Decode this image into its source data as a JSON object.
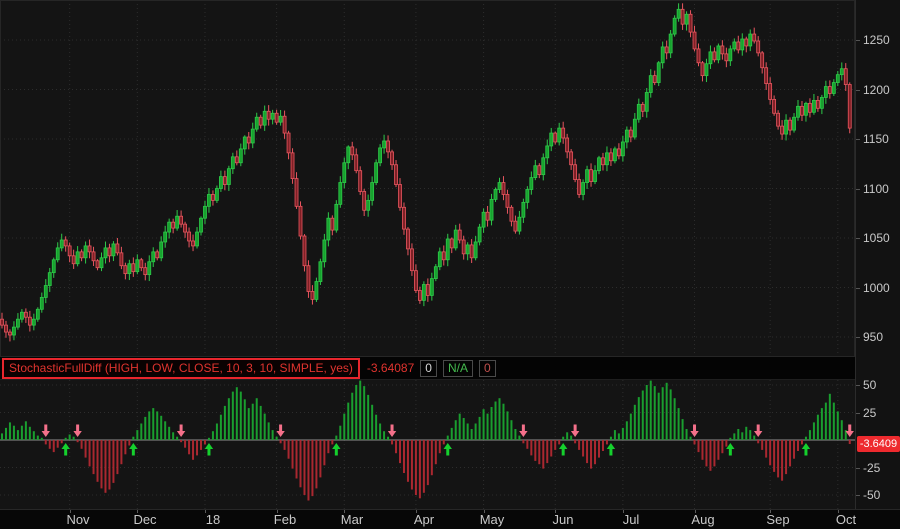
{
  "indicator_header": {
    "label": "StochasticFullDiff (HIGH, LOW, CLOSE, 10, 3, 10, SIMPLE, yes)",
    "value": "-3.64087",
    "fields": [
      {
        "text": "0",
        "color": "#d6d6d6"
      },
      {
        "text": "N/A",
        "color": "#44b94e"
      },
      {
        "text": "0",
        "color": "#c0504d"
      }
    ]
  },
  "price_axis": {
    "ticks": [
      1250,
      1200,
      1150,
      1100,
      1050,
      1000,
      950
    ]
  },
  "study_axis": {
    "ticks": [
      50,
      25,
      -25,
      -50
    ],
    "current_badge": "-3.6409"
  },
  "time_axis": {
    "labels": [
      "Nov",
      "Dec",
      "18",
      "Feb",
      "Mar",
      "Apr",
      "May",
      "Jun",
      "Jul",
      "Aug",
      "Sep",
      "Oct"
    ],
    "month_start_bars": [
      17,
      34,
      51,
      69,
      86,
      104,
      121,
      139,
      156,
      174,
      193,
      210
    ]
  },
  "chart_data": {
    "type": "candlestick_with_histogram_study",
    "title": "",
    "study_name": "StochasticFullDiff",
    "price_ylim": [
      932,
      1290
    ],
    "study_ylim": [
      -58,
      55
    ],
    "grid": true,
    "closes": [
      962,
      955,
      952,
      960,
      968,
      975,
      970,
      962,
      968,
      978,
      990,
      1002,
      1015,
      1028,
      1040,
      1048,
      1042,
      1032,
      1024,
      1036,
      1030,
      1042,
      1036,
      1027,
      1020,
      1030,
      1040,
      1032,
      1044,
      1035,
      1022,
      1014,
      1024,
      1016,
      1028,
      1020,
      1013,
      1026,
      1036,
      1030,
      1046,
      1056,
      1066,
      1060,
      1072,
      1064,
      1056,
      1047,
      1042,
      1056,
      1070,
      1082,
      1094,
      1088,
      1100,
      1112,
      1104,
      1120,
      1132,
      1126,
      1140,
      1152,
      1146,
      1160,
      1172,
      1164,
      1178,
      1170,
      1176,
      1167,
      1173,
      1156,
      1136,
      1110,
      1082,
      1052,
      1022,
      996,
      988,
      1006,
      1026,
      1048,
      1070,
      1058,
      1084,
      1106,
      1126,
      1142,
      1134,
      1118,
      1097,
      1078,
      1088,
      1106,
      1126,
      1141,
      1148,
      1137,
      1124,
      1104,
      1081,
      1059,
      1039,
      1017,
      997,
      987,
      1003,
      992,
      1009,
      1021,
      1036,
      1028,
      1049,
      1040,
      1058,
      1048,
      1034,
      1043,
      1030,
      1046,
      1061,
      1076,
      1068,
      1089,
      1099,
      1106,
      1094,
      1081,
      1067,
      1057,
      1071,
      1086,
      1099,
      1111,
      1123,
      1114,
      1131,
      1143,
      1156,
      1147,
      1161,
      1151,
      1137,
      1124,
      1109,
      1094,
      1106,
      1119,
      1107,
      1118,
      1131,
      1124,
      1136,
      1128,
      1140,
      1133,
      1147,
      1159,
      1152,
      1170,
      1185,
      1178,
      1197,
      1214,
      1207,
      1227,
      1243,
      1237,
      1256,
      1272,
      1281,
      1266,
      1276,
      1258,
      1241,
      1227,
      1214,
      1226,
      1238,
      1230,
      1244,
      1236,
      1229,
      1241,
      1248,
      1240,
      1251,
      1244,
      1256,
      1249,
      1237,
      1222,
      1206,
      1190,
      1176,
      1163,
      1155,
      1169,
      1159,
      1172,
      1183,
      1174,
      1186,
      1177,
      1189,
      1181,
      1192,
      1203,
      1196,
      1207,
      1215,
      1221,
      1205,
      1161
    ],
    "histogram": [
      6,
      11,
      16,
      13,
      9,
      13,
      17,
      12,
      8,
      4,
      2,
      -4,
      -8,
      -11,
      -7,
      -3,
      2,
      5,
      3,
      -2,
      -8,
      -16,
      -24,
      -31,
      -38,
      -44,
      -48,
      -45,
      -39,
      -31,
      -22,
      -13,
      -5,
      3,
      9,
      15,
      21,
      26,
      29,
      26,
      22,
      17,
      12,
      7,
      3,
      -2,
      -7,
      -13,
      -18,
      -14,
      -9,
      -4,
      2,
      8,
      15,
      23,
      31,
      38,
      44,
      48,
      44,
      37,
      29,
      33,
      38,
      31,
      24,
      16,
      9,
      3,
      -3,
      -9,
      -17,
      -26,
      -35,
      -43,
      -50,
      -55,
      -51,
      -44,
      -34,
      -23,
      -12,
      -4,
      4,
      13,
      24,
      34,
      43,
      50,
      54,
      49,
      41,
      32,
      23,
      15,
      8,
      3,
      -4,
      -12,
      -21,
      -30,
      -38,
      -45,
      -50,
      -53,
      -48,
      -41,
      -32,
      -22,
      -12,
      -4,
      4,
      11,
      18,
      24,
      20,
      15,
      10,
      15,
      21,
      28,
      24,
      30,
      35,
      38,
      33,
      26,
      18,
      10,
      4,
      -3,
      -8,
      -14,
      -19,
      -22,
      -26,
      -21,
      -15,
      -9,
      -4,
      3,
      7,
      4,
      -3,
      -9,
      -15,
      -21,
      -26,
      -22,
      -16,
      -10,
      -4,
      3,
      9,
      6,
      11,
      17,
      24,
      32,
      39,
      45,
      50,
      54,
      49,
      43,
      48,
      52,
      46,
      38,
      29,
      19,
      10,
      3,
      -4,
      -11,
      -18,
      -24,
      -28,
      -24,
      -18,
      -12,
      -6,
      2,
      6,
      10,
      7,
      12,
      9,
      4,
      -3,
      -9,
      -16,
      -23,
      -29,
      -34,
      -37,
      -31,
      -24,
      -17,
      -10,
      -4,
      3,
      9,
      16,
      23,
      29,
      34,
      42,
      34,
      26,
      18,
      9,
      -3.64
    ],
    "markers_rule": "green up-arrow where histogram crosses above 0, pink down-arrow where it crosses below 0",
    "colors": {
      "candle_up_fill": "#17a22e",
      "candle_up_stroke": "#2ec949",
      "candle_down_fill": "#7e2026",
      "candle_down_stroke": "#e9565f",
      "hist_up": "#1a9e2f",
      "hist_down": "#aa2830",
      "arrow_up": "#15d02d",
      "arrow_down": "#f4708a",
      "badge": "#ee2a2e",
      "grid": "#2d2d2d",
      "zero_line": "#8f8f8f"
    }
  }
}
